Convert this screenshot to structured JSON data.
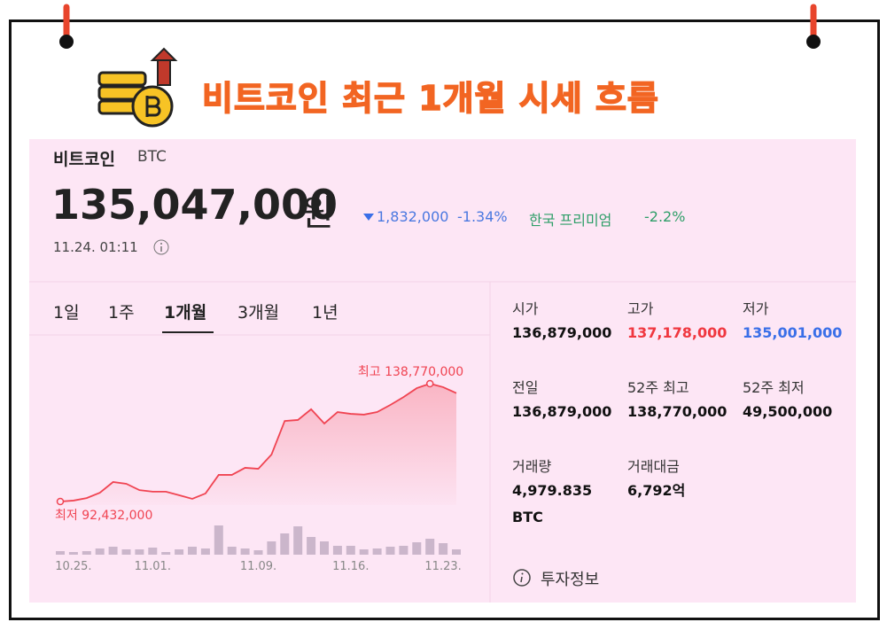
{
  "header": {
    "title": "비트코인 최근 1개월 시세 흐름"
  },
  "coin": {
    "name": "비트코인",
    "symbol": "BTC",
    "price": "135,047,000",
    "unit": "원",
    "change": "1,832,000",
    "change_pct": "-1.34%",
    "premium_label": "한국 프리미엄",
    "premium": "-2.2%",
    "time": "11.24. 01:11"
  },
  "tabs": {
    "items": [
      "1일",
      "1주",
      "1개월",
      "3개월",
      "1년"
    ],
    "active": 2
  },
  "stats": [
    {
      "label": "시가",
      "value": "136,879,000"
    },
    {
      "label": "고가",
      "value": "137,178,000",
      "color": "#f0373f"
    },
    {
      "label": "저가",
      "value": "135,001,000",
      "color": "#3a6fe8"
    },
    {
      "label": "전일",
      "value": "136,879,000"
    },
    {
      "label": "52주 최고",
      "value": "138,770,000"
    },
    {
      "label": "52주 최저",
      "value": "49,500,000"
    },
    {
      "label": "거래량",
      "value": "4,979.835 BTC"
    },
    {
      "label": "거래대금",
      "value": "6,792억"
    }
  ],
  "info": "투자정보",
  "chart_data": {
    "type": "line",
    "color": "#f04452",
    "volume_color": "#cbb6cb",
    "categories": [
      null,
      "10.25.",
      null,
      null,
      null,
      null,
      null,
      "11.01.",
      null,
      null,
      null,
      null,
      null,
      null,
      null,
      "11.09.",
      null,
      null,
      null,
      null,
      null,
      null,
      "11.16.",
      null,
      null,
      null,
      null,
      null,
      null,
      "11.23.",
      null
    ],
    "values": [
      92432000,
      92800000,
      93800000,
      95900000,
      100100000,
      99400000,
      96900000,
      96300000,
      96300000,
      94900000,
      93500000,
      95600000,
      102900000,
      102900000,
      105700000,
      105300000,
      110900000,
      124100000,
      124500000,
      128700000,
      123100000,
      127600000,
      126900000,
      126600000,
      127600000,
      130400000,
      133500000,
      137000000,
      138770000,
      137400000,
      135047000
    ],
    "volume": [
      4,
      3,
      4,
      7,
      9,
      6,
      6,
      8,
      3,
      6,
      9,
      7,
      33,
      9,
      7,
      5,
      15,
      24,
      32,
      20,
      15,
      10,
      10,
      6,
      7,
      9,
      10,
      14,
      18,
      13,
      6
    ],
    "annotations": [
      {
        "label": "최고 138,770,000",
        "index": 28
      },
      {
        "label": "최저 92,432,000",
        "index": 0
      }
    ]
  }
}
